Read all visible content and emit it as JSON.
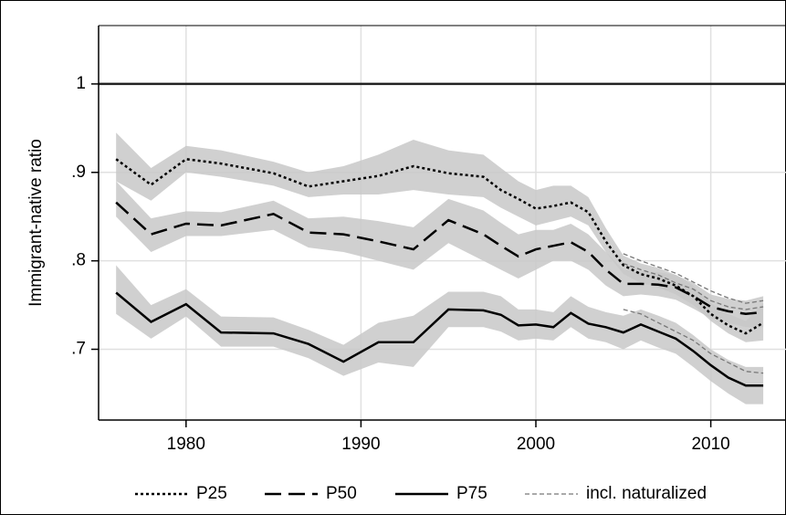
{
  "chart_data": {
    "type": "line",
    "y_label": "Immigrant-native ratio",
    "x": [
      1976,
      1978,
      1980,
      1982,
      1985,
      1987,
      1989,
      1991,
      1993,
      1995,
      1997,
      1998,
      1999,
      2000,
      2001,
      2002,
      2003,
      2004,
      2005,
      2006,
      2007,
      2008,
      2009,
      2010,
      2011,
      2012,
      2013
    ],
    "series": [
      {
        "name": "P25",
        "style": "dotted",
        "color": "#000000",
        "values": [
          0.915,
          0.886,
          0.915,
          0.91,
          0.899,
          0.884,
          0.89,
          0.896,
          0.907,
          0.899,
          0.895,
          0.88,
          0.87,
          0.859,
          0.862,
          0.866,
          0.855,
          0.822,
          0.795,
          0.785,
          0.78,
          0.772,
          0.76,
          0.74,
          0.727,
          0.718,
          0.73
        ],
        "lower": [
          0.89,
          0.868,
          0.9,
          0.895,
          0.885,
          0.872,
          0.875,
          0.875,
          0.88,
          0.875,
          0.872,
          0.86,
          0.85,
          0.84,
          0.845,
          0.85,
          0.84,
          0.81,
          0.785,
          0.775,
          0.77,
          0.762,
          0.75,
          0.732,
          0.718,
          0.708,
          0.71
        ],
        "upper": [
          0.945,
          0.905,
          0.93,
          0.925,
          0.912,
          0.9,
          0.907,
          0.92,
          0.937,
          0.925,
          0.92,
          0.905,
          0.89,
          0.88,
          0.885,
          0.885,
          0.872,
          0.837,
          0.806,
          0.797,
          0.792,
          0.784,
          0.772,
          0.752,
          0.74,
          0.732,
          0.752
        ]
      },
      {
        "name": "P50",
        "style": "dashed",
        "color": "#000000",
        "values": [
          0.866,
          0.83,
          0.842,
          0.84,
          0.853,
          0.832,
          0.83,
          0.822,
          0.813,
          0.846,
          0.83,
          0.817,
          0.805,
          0.813,
          0.817,
          0.821,
          0.81,
          0.79,
          0.774,
          0.774,
          0.773,
          0.77,
          0.76,
          0.748,
          0.743,
          0.74,
          0.742
        ],
        "lower": [
          0.85,
          0.81,
          0.828,
          0.828,
          0.835,
          0.815,
          0.81,
          0.8,
          0.79,
          0.82,
          0.8,
          0.79,
          0.78,
          0.79,
          0.8,
          0.8,
          0.79,
          0.772,
          0.76,
          0.762,
          0.76,
          0.756,
          0.746,
          0.735,
          0.73,
          0.725,
          0.725
        ],
        "upper": [
          0.89,
          0.848,
          0.856,
          0.855,
          0.868,
          0.848,
          0.85,
          0.845,
          0.838,
          0.87,
          0.857,
          0.843,
          0.83,
          0.835,
          0.835,
          0.842,
          0.83,
          0.81,
          0.79,
          0.788,
          0.787,
          0.784,
          0.775,
          0.762,
          0.757,
          0.755,
          0.76
        ]
      },
      {
        "name": "P75",
        "style": "solid",
        "color": "#000000",
        "values": [
          0.764,
          0.731,
          0.751,
          0.719,
          0.718,
          0.706,
          0.686,
          0.708,
          0.708,
          0.745,
          0.744,
          0.739,
          0.727,
          0.728,
          0.725,
          0.741,
          0.729,
          0.725,
          0.719,
          0.728,
          0.72,
          0.712,
          0.698,
          0.682,
          0.668,
          0.659,
          0.659
        ],
        "lower": [
          0.74,
          0.712,
          0.737,
          0.703,
          0.703,
          0.69,
          0.67,
          0.685,
          0.68,
          0.725,
          0.725,
          0.72,
          0.71,
          0.712,
          0.71,
          0.725,
          0.712,
          0.708,
          0.7,
          0.71,
          0.702,
          0.695,
          0.68,
          0.664,
          0.65,
          0.638,
          0.638
        ],
        "upper": [
          0.795,
          0.75,
          0.768,
          0.737,
          0.736,
          0.722,
          0.705,
          0.73,
          0.738,
          0.765,
          0.765,
          0.76,
          0.745,
          0.745,
          0.742,
          0.76,
          0.748,
          0.742,
          0.738,
          0.745,
          0.738,
          0.73,
          0.716,
          0.7,
          0.688,
          0.68,
          0.68
        ]
      }
    ],
    "band_color": "#c8c8c8",
    "naturalized": {
      "name": "incl. naturalized",
      "color": "#777777",
      "x": [
        2005,
        2006,
        2007,
        2008,
        2009,
        2010,
        2011,
        2012,
        2013
      ],
      "lines": [
        [
          0.808,
          0.8,
          0.793,
          0.786,
          0.776,
          0.766,
          0.758,
          0.752,
          0.755
        ],
        [
          0.797,
          0.79,
          0.784,
          0.775,
          0.768,
          0.755,
          0.748,
          0.745,
          0.748
        ],
        [
          0.745,
          0.74,
          0.73,
          0.72,
          0.71,
          0.695,
          0.685,
          0.675,
          0.673
        ]
      ]
    },
    "reference_line": 1,
    "xlim": [
      1975,
      2014.3
    ],
    "ylim": [
      0.62,
      1.066
    ],
    "xticks": [
      1980,
      1990,
      2000,
      2010
    ],
    "yticks": [
      {
        "value": 0.7,
        "label": ".7"
      },
      {
        "value": 0.8,
        "label": ".8"
      },
      {
        "value": 0.9,
        "label": ".9"
      },
      1
    ],
    "grid": true
  }
}
